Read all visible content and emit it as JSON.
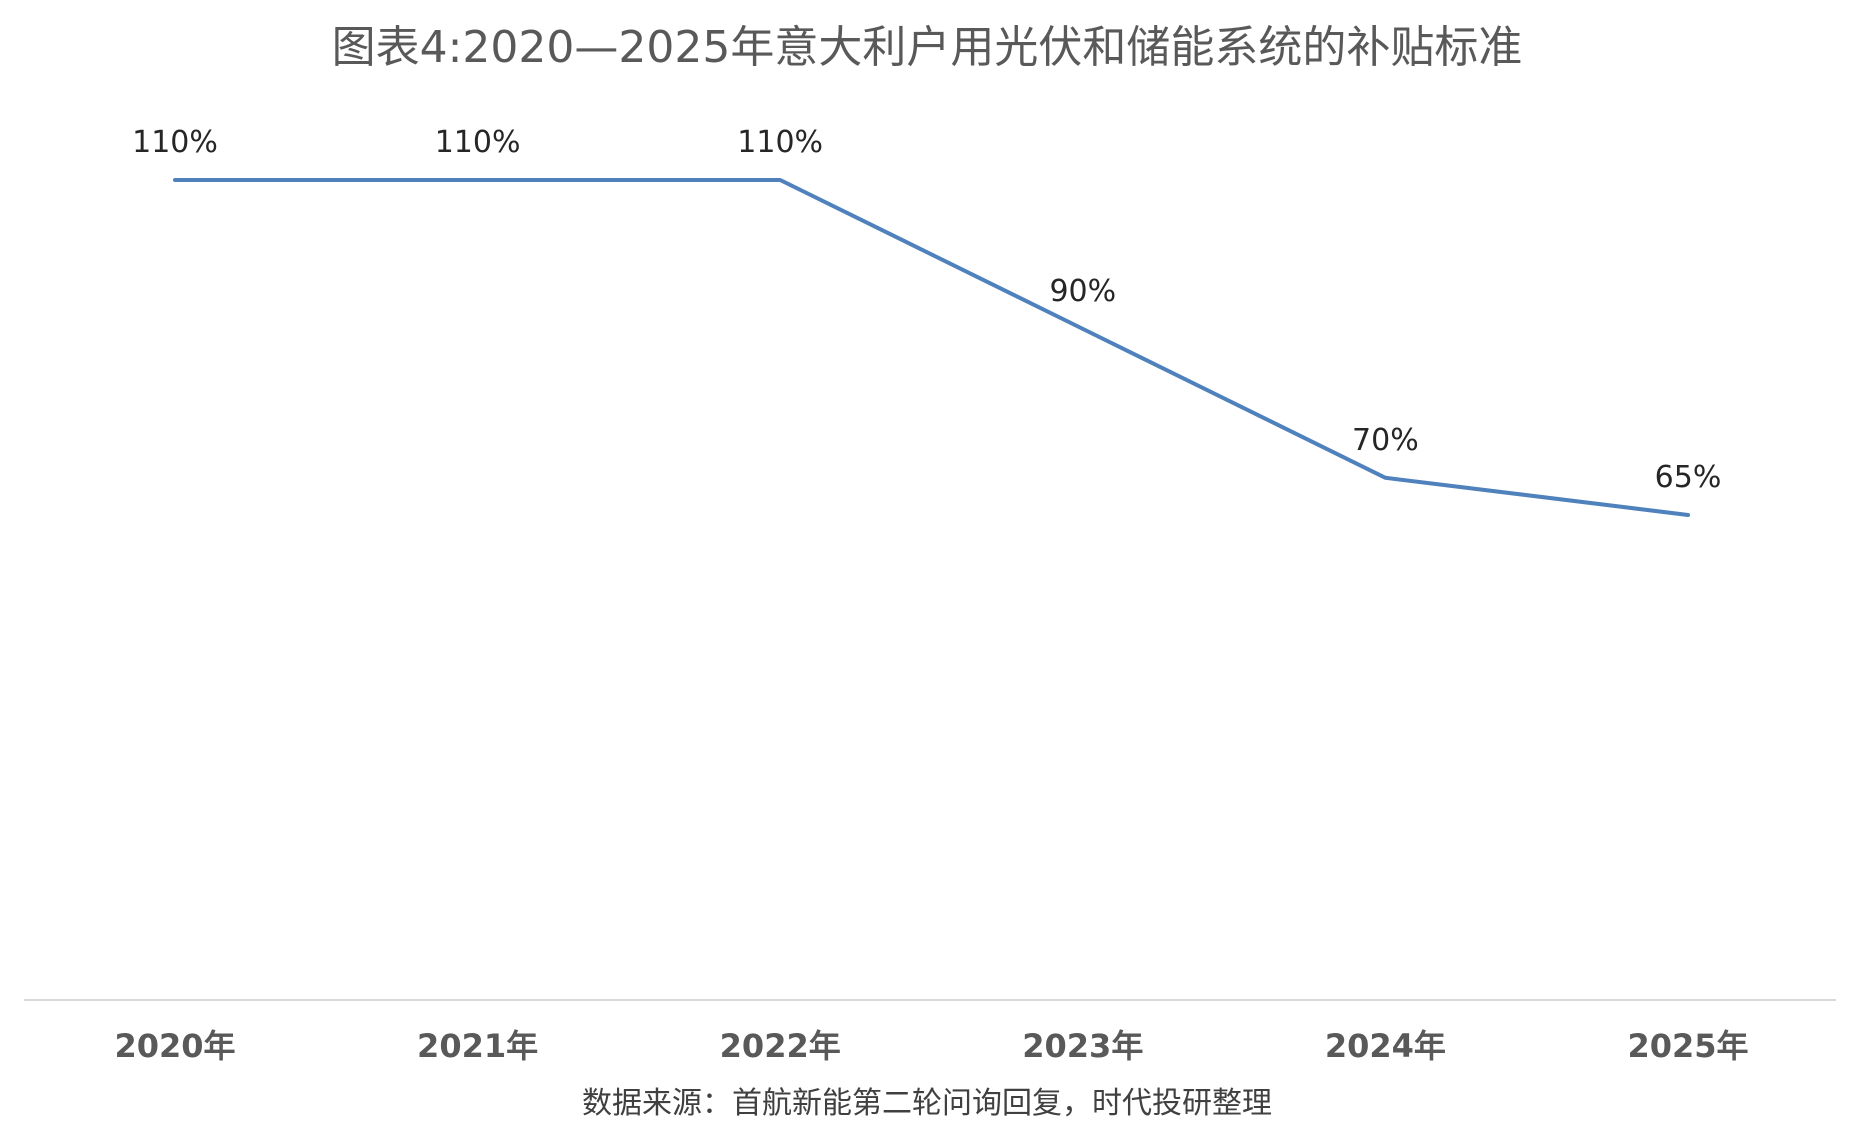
{
  "chart_data": {
    "type": "line",
    "title": "图表4:2020—2025年意大利户用光伏和储能系统的补贴标准",
    "categories": [
      "2020年",
      "2021年",
      "2022年",
      "2023年",
      "2024年",
      "2025年"
    ],
    "series": [
      {
        "values": [
          110,
          110,
          110,
          90,
          70,
          65
        ],
        "labels": [
          "110%",
          "110%",
          "110%",
          "90%",
          "70%",
          "65%"
        ],
        "color": "#4f81bd"
      }
    ],
    "xlabel": "",
    "ylabel": "",
    "y_axis_visible": false,
    "grid": false,
    "legend": "none"
  },
  "source": "数据来源：首航新能第二轮问询回复，时代投研整理",
  "colors": {
    "line": "#4f81bd",
    "axis": "#d9d9d9",
    "title": "#595959"
  }
}
